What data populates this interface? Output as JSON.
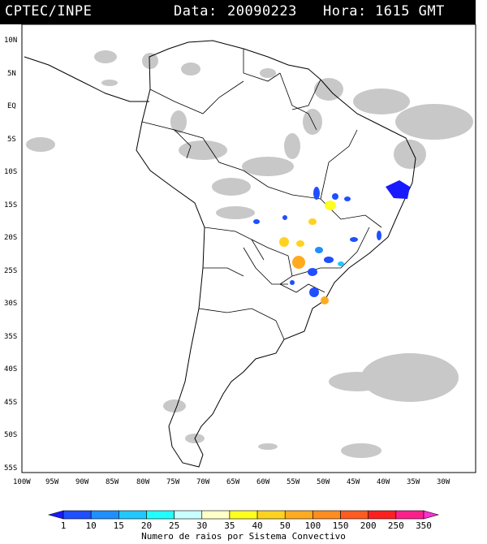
{
  "header": {
    "source": "CPTEC/INPE",
    "data_label": "Data:",
    "date": "20090223",
    "hora_label": "Hora:",
    "time": "1615 GMT"
  },
  "map": {
    "lat_ticks": [
      "10N",
      "5N",
      "EQ",
      "5S",
      "10S",
      "15S",
      "20S",
      "25S",
      "30S",
      "35S",
      "40S",
      "45S",
      "50S",
      "55S"
    ],
    "lon_ticks": [
      "100W",
      "95W",
      "90W",
      "85W",
      "80W",
      "75W",
      "70W",
      "65W",
      "60W",
      "55W",
      "50W",
      "45W",
      "40W",
      "35W",
      "30W"
    ],
    "land_outline_color": "#000000",
    "cloud_color": "#c8c8c8"
  },
  "colorbar": {
    "title": "Numero de raios por Sistema Convectivo",
    "labels": [
      "1",
      "10",
      "15",
      "20",
      "25",
      "30",
      "35",
      "40",
      "50",
      "100",
      "150",
      "200",
      "250",
      "350"
    ],
    "colors": [
      "#1a1aff",
      "#1f4fff",
      "#1f8fff",
      "#20c8ff",
      "#20ffff",
      "#c8ffff",
      "#ffffc8",
      "#ffff1f",
      "#ffd21f",
      "#ffaa1f",
      "#ff8c1f",
      "#ff5a1f",
      "#ff1f1f",
      "#ff1f8c",
      "#ff2fd0"
    ]
  }
}
